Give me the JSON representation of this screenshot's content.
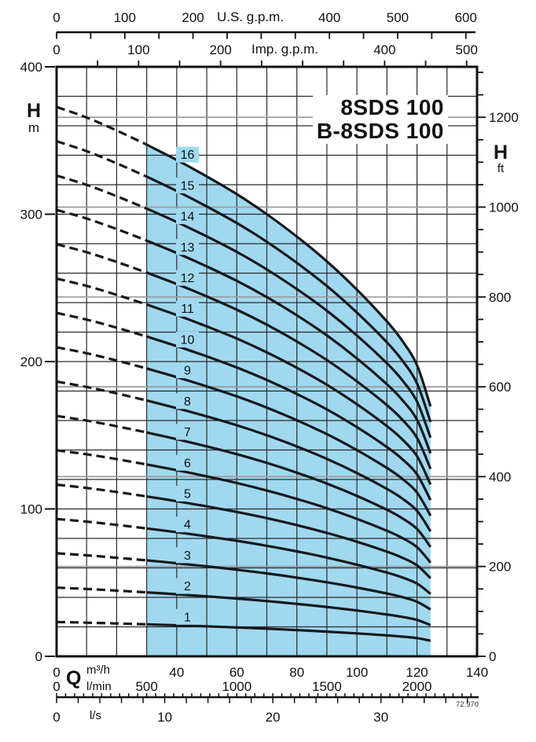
{
  "title": {
    "line1": "8SDS 100",
    "line2": "B-8SDS 100"
  },
  "stamp": "72.970",
  "colors": {
    "region_fill": "#a0d8f0",
    "curve": "#16191c",
    "grid_m": "#2b2b2b",
    "grid_ft": "#9b9b9b",
    "axis": "#111111",
    "text": "#111111",
    "background": "#ffffff"
  },
  "labels": {
    "h_left": "H",
    "m_unit": "m",
    "h_right": "H",
    "ft_unit": "ft",
    "q": "Q"
  },
  "chart_data": {
    "type": "line",
    "title": "8SDS 100 / B-8SDS 100",
    "description": "Multistage submersible pump head curves. Curve label = number of stages (1-16); head of n-stage pump = n x single-stage head. Shaded band = recommended operating range. Dashed portion = below minimum flow.",
    "x_axes": {
      "m3h": {
        "label": "m³/h",
        "range": [
          0,
          140
        ],
        "tick_labels": [
          0,
          40,
          60,
          80,
          100,
          120,
          140
        ],
        "grid_step": 10,
        "to_m3h": 1
      },
      "us_gpm": {
        "label": "U.S. g.p.m.",
        "tick_labels": [
          0,
          100,
          200,
          400,
          500,
          600
        ],
        "minor_step": 50,
        "max": 600,
        "to_m3h": 0.22712
      },
      "imp_gpm": {
        "label": "Imp. g.p.m.",
        "tick_labels": [
          0,
          100,
          200,
          400,
          500
        ],
        "minor_step": 50,
        "max": 500,
        "to_m3h": 0.27305
      },
      "l_min": {
        "label": "l/min",
        "tick_labels": [
          0,
          500,
          1000,
          1500,
          2000
        ],
        "minor_step": 50,
        "max": 2300,
        "to_m3h": 0.06
      },
      "l_s": {
        "label": "l/s",
        "tick_labels": [
          0,
          10,
          20,
          30
        ],
        "minor_step": 2,
        "max": 38,
        "to_m3h": 3.6
      }
    },
    "y_axes": {
      "m": {
        "label": "H",
        "unit": "m",
        "range": [
          0,
          400
        ],
        "tick_labels": [
          0,
          100,
          200,
          300,
          400
        ],
        "grid_step": 20,
        "to_m": 1
      },
      "ft": {
        "label": "H",
        "unit": "ft",
        "tick_labels": [
          0,
          200,
          400,
          600,
          800,
          1000,
          1200
        ],
        "minor_step": 50,
        "max": 1300,
        "to_m": 0.3048
      }
    },
    "per_stage_head": {
      "q_m3h": [
        0,
        10,
        20,
        30,
        40,
        50,
        60,
        70,
        80,
        90,
        100,
        110,
        115,
        120,
        124.5
      ],
      "h_m": [
        23.3,
        22.85,
        22.3,
        21.7,
        21.05,
        20.35,
        19.6,
        18.75,
        17.8,
        16.75,
        15.55,
        14.2,
        13.4,
        12.35,
        10.6
      ]
    },
    "stages": [
      1,
      2,
      3,
      4,
      5,
      6,
      7,
      8,
      9,
      10,
      11,
      12,
      13,
      14,
      15,
      16
    ],
    "dashed_range_q": [
      0,
      30
    ],
    "solid_range_q": [
      30,
      124.5
    ],
    "operating_region": {
      "q_min_m3h": 30,
      "q_max_m3h": 124.5,
      "top_boundary": "stage-16 curve",
      "bottom": 0
    },
    "curve_label_q": 42,
    "legend_position": "labels-on-curves",
    "grid": true
  }
}
